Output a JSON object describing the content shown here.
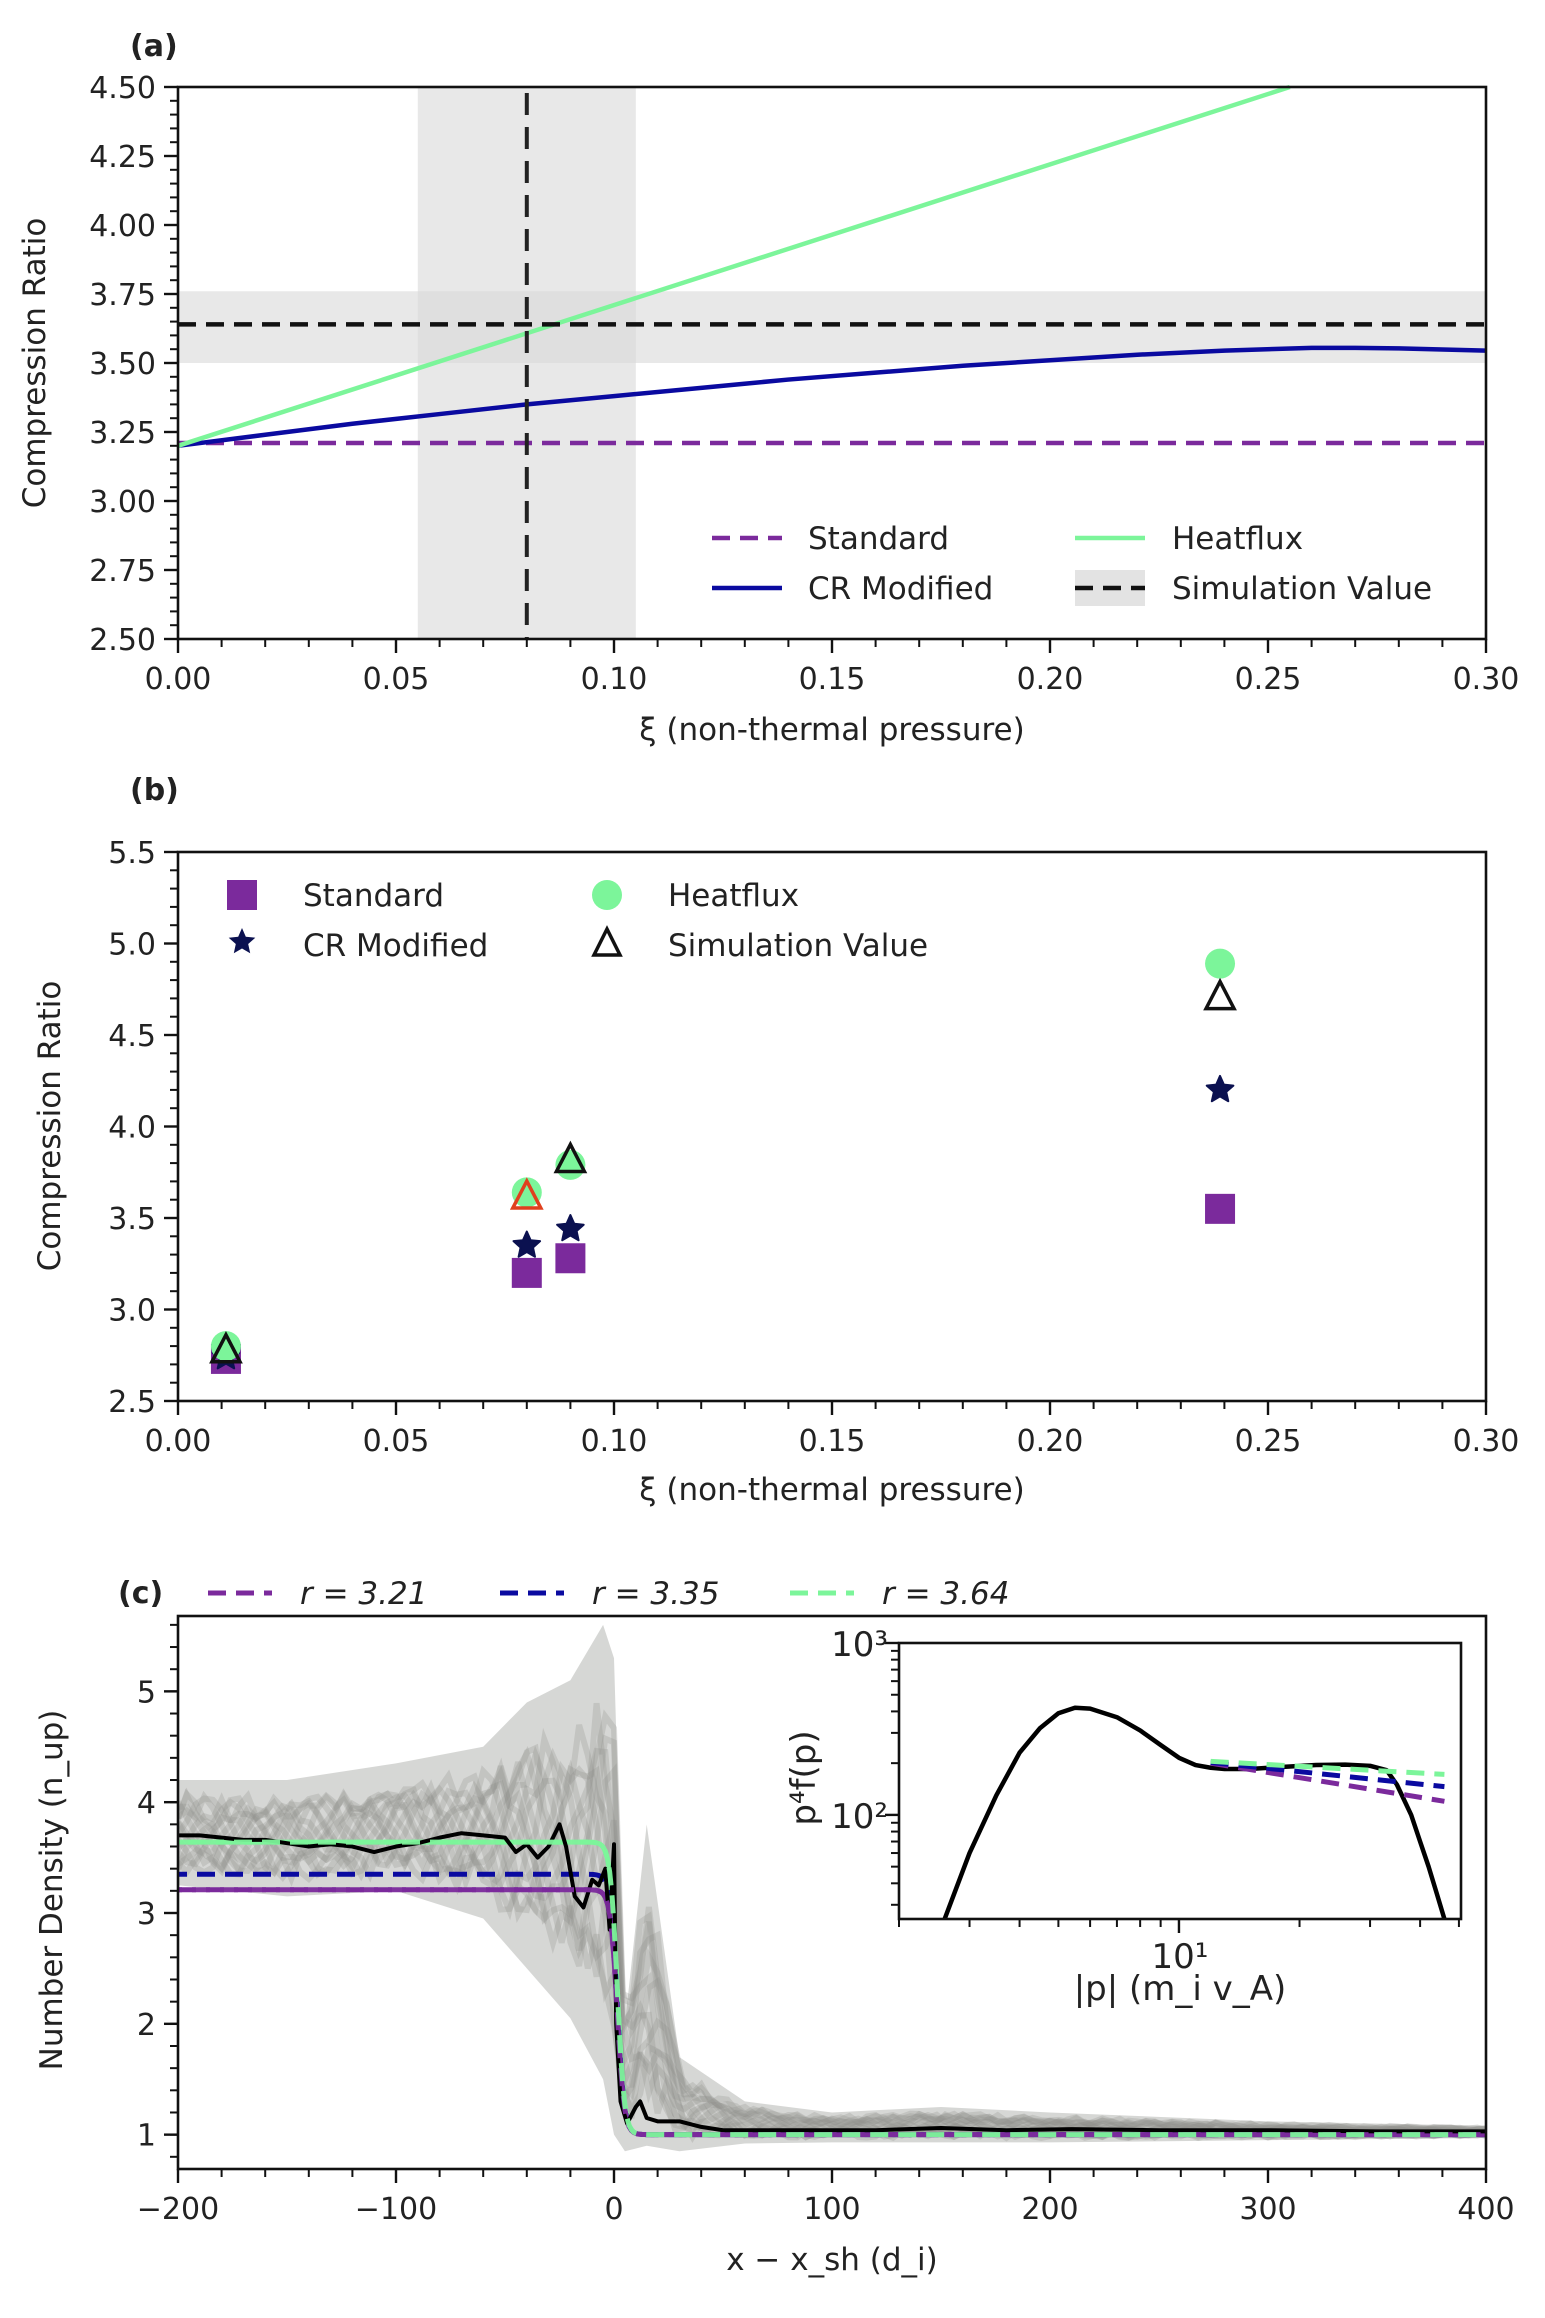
{
  "figure": {
    "panels": [
      "(a)",
      "(b)",
      "(c)"
    ]
  },
  "colors": {
    "standard": "#7b2a9c",
    "cr_modified": "#0a0aa0",
    "cr_modified_marker": "#0b1150",
    "heatflux": "#7cf59a",
    "simulation": "#111111",
    "simulation_band": "#d9d9d9",
    "highlight_edge": "#e0401e",
    "gray_traces": "#8a8c86"
  },
  "chart_data": [
    {
      "id": "a",
      "panel_label": "(a)",
      "type": "line",
      "title": "",
      "xlabel": "ξ (non-thermal pressure)",
      "ylabel": "Compression Ratio",
      "xlim": [
        0.0,
        0.3
      ],
      "ylim": [
        2.5,
        4.5
      ],
      "xticks": [
        "0.00",
        "0.05",
        "0.10",
        "0.15",
        "0.20",
        "0.25",
        "0.30"
      ],
      "yticks": [
        "2.50",
        "2.75",
        "3.00",
        "3.25",
        "3.50",
        "3.75",
        "4.00",
        "4.25",
        "4.50"
      ],
      "grid": false,
      "legend": {
        "placement": "lower-right",
        "columns": 2,
        "entries": [
          "Standard",
          "Heatflux",
          "CR Modified",
          "Simulation Value"
        ]
      },
      "series": [
        {
          "name": "Standard",
          "style": "dashed",
          "x": [
            0.0,
            0.3
          ],
          "y": [
            3.21,
            3.21
          ]
        },
        {
          "name": "CR Modified",
          "style": "solid",
          "x": [
            0.0,
            0.02,
            0.04,
            0.06,
            0.08,
            0.1,
            0.12,
            0.14,
            0.16,
            0.18,
            0.2,
            0.22,
            0.24,
            0.26,
            0.27,
            0.28,
            0.3
          ],
          "y": [
            3.2,
            3.24,
            3.28,
            3.315,
            3.35,
            3.38,
            3.41,
            3.44,
            3.465,
            3.49,
            3.51,
            3.53,
            3.545,
            3.555,
            3.555,
            3.553,
            3.545
          ]
        },
        {
          "name": "Heatflux",
          "style": "solid",
          "x": [
            0.0,
            0.255
          ],
          "y": [
            3.2,
            4.5
          ]
        },
        {
          "name": "Simulation Value",
          "style": "dashed",
          "y_value": 3.64,
          "y_band": [
            3.5,
            3.76
          ],
          "x_value": 0.08,
          "x_band": [
            0.055,
            0.105
          ]
        }
      ]
    },
    {
      "id": "b",
      "panel_label": "(b)",
      "type": "scatter",
      "title": "",
      "xlabel": "ξ (non-thermal pressure)",
      "ylabel": "Compression Ratio",
      "xlim": [
        0.0,
        0.3
      ],
      "ylim": [
        2.5,
        5.5
      ],
      "xticks": [
        "0.00",
        "0.05",
        "0.10",
        "0.15",
        "0.20",
        "0.25",
        "0.30"
      ],
      "yticks": [
        "2.5",
        "3.0",
        "3.5",
        "4.0",
        "4.5",
        "5.0",
        "5.5"
      ],
      "grid": false,
      "legend": {
        "placement": "upper-left",
        "columns": 2,
        "entries": [
          "Standard",
          "Heatflux",
          "CR Modified",
          "Simulation Value"
        ]
      },
      "x": [
        0.011,
        0.08,
        0.09,
        0.239
      ],
      "series": [
        {
          "name": "Standard",
          "marker": "square",
          "y": [
            2.73,
            3.2,
            3.28,
            3.55
          ]
        },
        {
          "name": "CR Modified",
          "marker": "star",
          "y": [
            2.74,
            3.35,
            3.44,
            4.2
          ]
        },
        {
          "name": "Heatflux",
          "marker": "circle",
          "y": [
            2.8,
            3.64,
            3.79,
            4.89
          ]
        },
        {
          "name": "Simulation Value",
          "marker": "triangle-open",
          "y": [
            2.78,
            3.62,
            3.82,
            4.71
          ],
          "highlight_index": 1
        }
      ]
    },
    {
      "id": "c",
      "panel_label": "(c)",
      "type": "line",
      "title": "",
      "xlabel": "x − x_sh (d_i)",
      "ylabel": "Number Density (n_up)",
      "xlim": [
        -200,
        400
      ],
      "ylim": [
        0.69,
        5.68
      ],
      "xticks": [
        "−200",
        "−100",
        "0",
        "100",
        "200",
        "300",
        "400"
      ],
      "yticks": [
        "1",
        "2",
        "3",
        "4",
        "5"
      ],
      "grid": false,
      "legend": {
        "placement": "top-outside",
        "columns": 3,
        "entries": [
          "r = 3.21",
          "r = 3.35",
          "r = 3.64"
        ]
      },
      "series": [
        {
          "name": "r = 3.21",
          "style": "dashed",
          "downstream": 3.21,
          "upstream": 1.0
        },
        {
          "name": "r = 3.35",
          "style": "dashed",
          "downstream": 3.35,
          "upstream": 1.0
        },
        {
          "name": "r = 3.64",
          "style": "dashed",
          "downstream": 3.64,
          "upstream": 1.0
        },
        {
          "name": "density (time-averaged)",
          "style": "solid",
          "x": [
            -200,
            -190,
            -180,
            -170,
            -160,
            -150,
            -140,
            -130,
            -120,
            -110,
            -100,
            -90,
            -80,
            -70,
            -60,
            -50,
            -45,
            -40,
            -35,
            -30,
            -25,
            -22,
            -18,
            -14,
            -10,
            -7,
            -4,
            -2,
            0,
            1,
            3,
            6,
            10,
            12,
            15,
            20,
            30,
            40,
            50,
            80,
            120,
            150,
            180,
            210,
            250,
            300,
            350,
            400
          ],
          "y": [
            3.7,
            3.7,
            3.68,
            3.66,
            3.66,
            3.63,
            3.6,
            3.62,
            3.6,
            3.55,
            3.6,
            3.63,
            3.68,
            3.72,
            3.7,
            3.68,
            3.55,
            3.62,
            3.5,
            3.6,
            3.8,
            3.6,
            3.15,
            3.05,
            3.3,
            3.25,
            3.4,
            2.85,
            3.62,
            2.0,
            1.3,
            1.1,
            1.25,
            1.3,
            1.15,
            1.12,
            1.12,
            1.07,
            1.04,
            1.04,
            1.04,
            1.06,
            1.04,
            1.05,
            1.04,
            1.04,
            1.03,
            1.03
          ]
        },
        {
          "name": "individual snapshots",
          "style": "gray-band",
          "x": [
            -200,
            -150,
            -100,
            -60,
            -40,
            -20,
            -5,
            0,
            5,
            15,
            30,
            60,
            100,
            150,
            200,
            300,
            400
          ],
          "upper": [
            4.2,
            4.2,
            4.35,
            4.5,
            4.9,
            5.1,
            5.6,
            5.3,
            2.0,
            3.8,
            1.7,
            1.3,
            1.2,
            1.25,
            1.2,
            1.12,
            1.08
          ],
          "lower": [
            3.25,
            3.15,
            3.2,
            2.95,
            2.5,
            2.05,
            1.5,
            1.0,
            0.85,
            0.9,
            0.85,
            0.92,
            0.93,
            0.93,
            0.93,
            0.95,
            0.97
          ]
        }
      ],
      "inset": {
        "type": "line",
        "xscale": "log",
        "yscale": "log",
        "xlabel": "|p| (m_i v_A)",
        "ylabel": "p⁴f(p)",
        "xlim": [
          2.0,
          50.6
        ],
        "ylim": [
          24.8,
          1000
        ],
        "xticks": [
          "10¹"
        ],
        "yticks": [
          "10²",
          "10³"
        ],
        "series": [
          {
            "name": "spectrum",
            "style": "solid",
            "x": [
              2.6,
              3.0,
              3.5,
              4.0,
              4.5,
              5.0,
              5.5,
              6.0,
              7.0,
              8.0,
              9.0,
              10.0,
              11.0,
              12.0,
              13.0,
              15.0,
              18.0,
              22.0,
              26.0,
              30.0,
              33.0,
              35.0,
              38.0,
              40.0,
              42.0,
              44.0,
              46.0
            ],
            "y": [
              24.8,
              60,
              130,
              230,
              320,
              390,
              420,
              415,
              370,
              310,
              255,
              215,
              195,
              188,
              185,
              185,
              190,
              195,
              196,
              193,
              182,
              150,
              100,
              70,
              50,
              35,
              24.8
            ]
          },
          {
            "name": "r = 3.21 fit",
            "style": "dashed",
            "x": [
              12.0,
              46.0
            ],
            "y": [
              200,
              120
            ]
          },
          {
            "name": "r = 3.35 fit",
            "style": "dashed",
            "x": [
              12.0,
              46.0
            ],
            "y": [
              202,
              146
            ]
          },
          {
            "name": "r = 3.64 fit",
            "style": "dashed",
            "x": [
              12.0,
              46.0
            ],
            "y": [
              205,
              172
            ]
          }
        ]
      }
    }
  ]
}
